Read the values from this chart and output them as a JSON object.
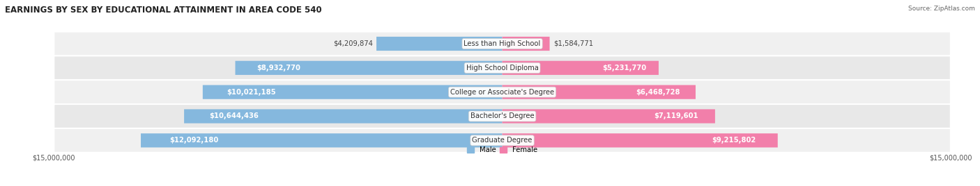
{
  "title": "EARNINGS BY SEX BY EDUCATIONAL ATTAINMENT IN AREA CODE 540",
  "source": "Source: ZipAtlas.com",
  "categories": [
    "Less than High School",
    "High School Diploma",
    "College or Associate's Degree",
    "Bachelor's Degree",
    "Graduate Degree"
  ],
  "male_values": [
    4209874,
    8932770,
    10021185,
    10644436,
    12092180
  ],
  "female_values": [
    1584771,
    5231770,
    6468728,
    7119601,
    9215802
  ],
  "male_labels": [
    "$4,209,874",
    "$8,932,770",
    "$10,021,185",
    "$10,644,436",
    "$12,092,180"
  ],
  "female_labels": [
    "$1,584,771",
    "$5,231,770",
    "$6,468,728",
    "$7,119,601",
    "$9,215,802"
  ],
  "max_value": 15000000,
  "male_color": "#85b8de",
  "female_color": "#f27faa",
  "row_bg_colors": [
    "#f0f0f0",
    "#e8e8e8",
    "#f0f0f0",
    "#e8e8e8",
    "#f0f0f0"
  ],
  "title_fontsize": 8.5,
  "label_fontsize": 7.2,
  "tick_fontsize": 7,
  "x_tick_label": "$15,000,000",
  "bar_height": 0.58,
  "inside_label_threshold": 5000000,
  "figsize": [
    14.06,
    2.68
  ],
  "dpi": 100
}
